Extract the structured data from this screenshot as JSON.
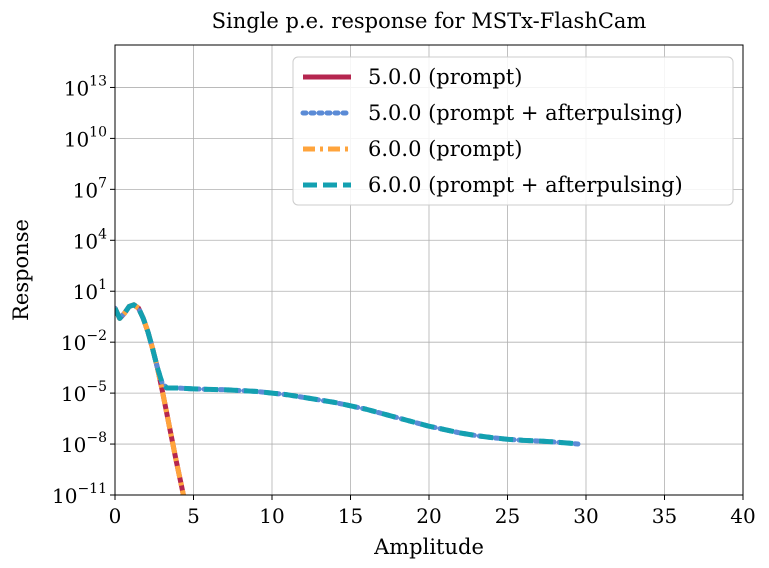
{
  "chart_data": {
    "type": "line",
    "title": "Single p.e. response for MSTx-FlashCam",
    "xlabel": "Amplitude",
    "ylabel": "Response",
    "xlim": [
      0,
      40
    ],
    "ylim_log10": [
      -11,
      15.5
    ],
    "yscale": "log",
    "grid": true,
    "legend_position": "top-right",
    "x_ticks": [
      "0",
      "5",
      "10",
      "15",
      "20",
      "25",
      "30",
      "35",
      "40"
    ],
    "y_ticks": [
      {
        "base": "10",
        "exp": "−11",
        "log10": -11
      },
      {
        "base": "10",
        "exp": "−8",
        "log10": -8
      },
      {
        "base": "10",
        "exp": "−5",
        "log10": -5
      },
      {
        "base": "10",
        "exp": "−2",
        "log10": -2
      },
      {
        "base": "10",
        "exp": "1",
        "log10": 1
      },
      {
        "base": "10",
        "exp": "4",
        "log10": 4
      },
      {
        "base": "10",
        "exp": "7",
        "log10": 7
      },
      {
        "base": "10",
        "exp": "10",
        "log10": 10
      },
      {
        "base": "10",
        "exp": "13",
        "log10": 13
      }
    ],
    "series": [
      {
        "name": "5.0.0 (prompt)",
        "color": "#b5264f",
        "dash": "solid",
        "x": [
          0.0,
          0.3,
          0.6,
          0.9,
          1.2,
          1.5,
          1.8,
          2.1,
          2.4,
          2.7,
          3.0,
          3.3,
          3.6,
          3.9,
          4.2,
          4.4
        ],
        "log10_y": [
          0.0,
          -0.6,
          -0.3,
          0.1,
          0.2,
          0.0,
          -0.6,
          -1.4,
          -2.4,
          -3.5,
          -4.8,
          -6.2,
          -7.6,
          -9.0,
          -10.3,
          -11.2
        ]
      },
      {
        "name": "5.0.0 (prompt + afterpulsing)",
        "color": "#5b8bd6",
        "dash": "dotted",
        "x": [
          0.0,
          0.3,
          0.6,
          0.9,
          1.2,
          1.5,
          1.8,
          2.1,
          2.4,
          2.7,
          3.0,
          3.3,
          4,
          5,
          6,
          7,
          8,
          9,
          10,
          11,
          12,
          13,
          14,
          15,
          16,
          17,
          18,
          19,
          20,
          21,
          22,
          23,
          24,
          25,
          26,
          27,
          28,
          29,
          29.5
        ],
        "log10_y": [
          0.0,
          -0.6,
          -0.3,
          0.1,
          0.2,
          0.0,
          -0.6,
          -1.4,
          -2.4,
          -3.5,
          -4.4,
          -4.7,
          -4.7,
          -4.75,
          -4.78,
          -4.8,
          -4.85,
          -4.9,
          -5.0,
          -5.1,
          -5.25,
          -5.4,
          -5.55,
          -5.75,
          -5.95,
          -6.2,
          -6.45,
          -6.7,
          -6.95,
          -7.15,
          -7.35,
          -7.5,
          -7.62,
          -7.72,
          -7.78,
          -7.82,
          -7.88,
          -7.95,
          -8.0
        ]
      },
      {
        "name": "6.0.0 (prompt)",
        "color": "#ffa43c",
        "dash": "dashdot",
        "x": [
          0.0,
          0.3,
          0.6,
          0.9,
          1.2,
          1.5,
          1.8,
          2.1,
          2.4,
          2.7,
          3.0,
          3.3,
          3.6,
          3.9,
          4.2,
          4.4
        ],
        "log10_y": [
          0.0,
          -0.6,
          -0.3,
          0.1,
          0.2,
          0.0,
          -0.6,
          -1.4,
          -2.4,
          -3.5,
          -4.8,
          -6.2,
          -7.6,
          -9.0,
          -10.3,
          -11.2
        ]
      },
      {
        "name": "6.0.0 (prompt + afterpulsing)",
        "color": "#13a0b0",
        "dash": "dashed",
        "x": [
          0.0,
          0.3,
          0.6,
          0.9,
          1.2,
          1.5,
          1.8,
          2.1,
          2.4,
          2.7,
          3.0,
          3.3,
          4,
          5,
          6,
          7,
          8,
          9,
          10,
          11,
          12,
          13,
          14,
          15,
          16,
          17,
          18,
          19,
          20,
          21,
          22,
          23,
          24,
          25,
          26,
          27,
          28,
          29,
          29.5
        ],
        "log10_y": [
          0.0,
          -0.6,
          -0.3,
          0.1,
          0.2,
          0.0,
          -0.6,
          -1.4,
          -2.4,
          -3.5,
          -4.4,
          -4.7,
          -4.7,
          -4.75,
          -4.78,
          -4.8,
          -4.85,
          -4.9,
          -5.0,
          -5.1,
          -5.25,
          -5.4,
          -5.55,
          -5.75,
          -5.95,
          -6.2,
          -6.45,
          -6.7,
          -6.95,
          -7.15,
          -7.35,
          -7.5,
          -7.62,
          -7.72,
          -7.78,
          -7.82,
          -7.88,
          -7.95,
          -8.0
        ]
      }
    ]
  }
}
